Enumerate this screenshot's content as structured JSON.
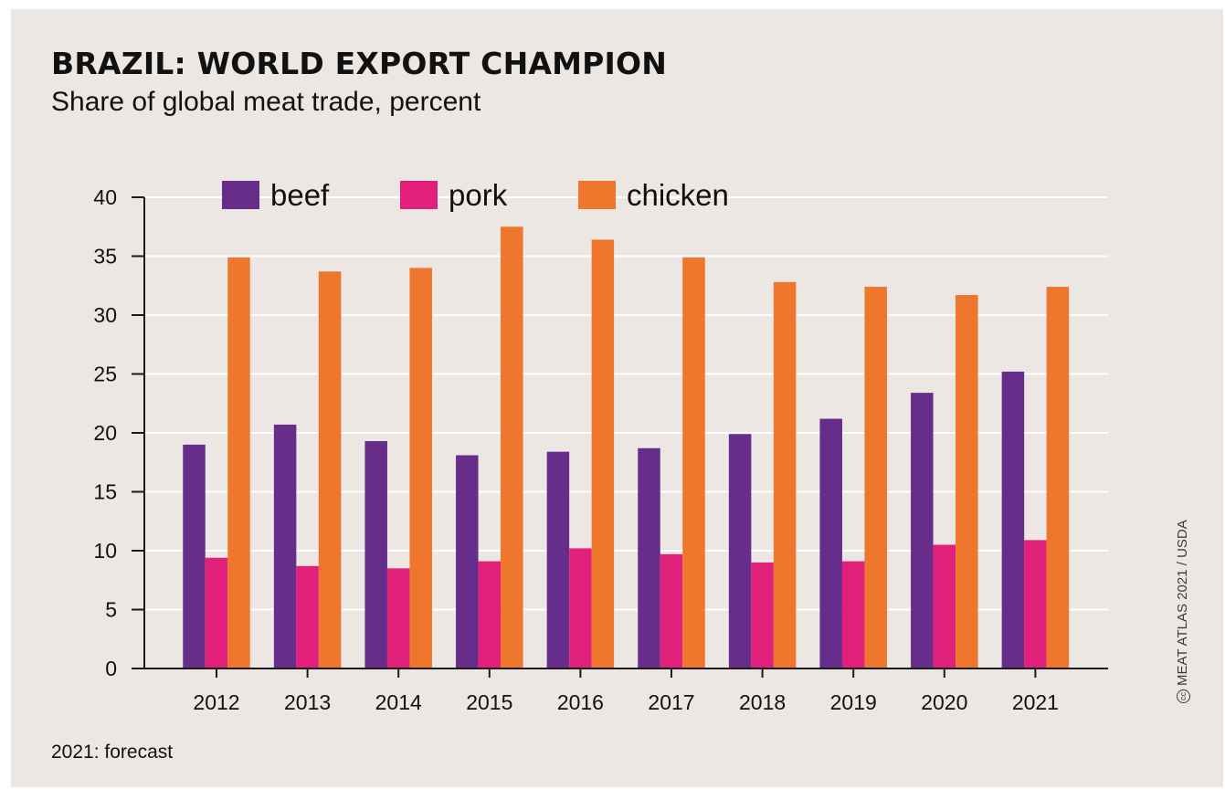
{
  "footnote": "2021: forecast",
  "credit": {
    "icon": "creative-commons-icon",
    "icon_glyph": "cc",
    "text": "MEAT ATLAS 2021 / USDA"
  },
  "colors": {
    "background": "#ece7e3",
    "beef": "#672d8a",
    "pork": "#e0207a",
    "chicken": "#ee762d",
    "gridline": "#ffffff",
    "axis": "#1a1a1a"
  },
  "chart_data": {
    "type": "bar",
    "title": "BRAZIL: WORLD EXPORT CHAMPION",
    "subtitle": "Share of global meat trade, percent",
    "xlabel": "",
    "ylabel": "",
    "categories": [
      "2012",
      "2013",
      "2014",
      "2015",
      "2016",
      "2017",
      "2018",
      "2019",
      "2020",
      "2021"
    ],
    "series": [
      {
        "name": "beef",
        "values": [
          19.0,
          20.7,
          19.3,
          18.1,
          18.4,
          18.7,
          19.9,
          21.2,
          23.4,
          25.2
        ]
      },
      {
        "name": "pork",
        "values": [
          9.4,
          8.7,
          8.5,
          9.1,
          10.2,
          9.7,
          9.0,
          9.1,
          10.5,
          10.9
        ]
      },
      {
        "name": "chicken",
        "values": [
          34.9,
          33.7,
          34.0,
          37.5,
          36.4,
          34.9,
          32.8,
          32.4,
          31.7,
          32.4
        ]
      }
    ],
    "ylim": [
      0,
      40
    ],
    "yticks": [
      "0",
      "5",
      "10",
      "15",
      "20",
      "25",
      "30",
      "35",
      "40"
    ],
    "grid": "horizontal",
    "legend": "top"
  }
}
